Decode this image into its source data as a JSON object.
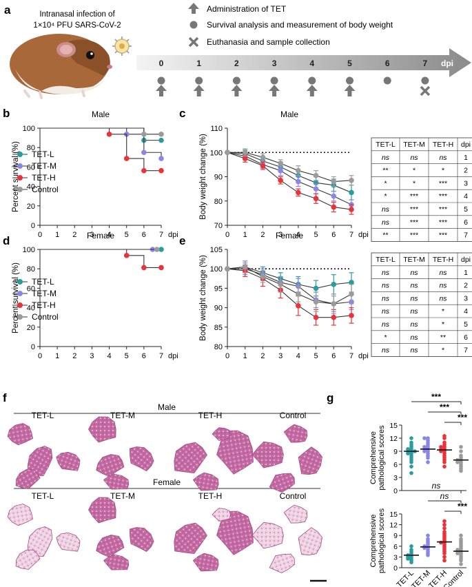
{
  "panel_labels": {
    "a": "a",
    "b": "b",
    "c": "c",
    "d": "d",
    "e": "e",
    "f": "f",
    "g": "g"
  },
  "colors": {
    "tet_l": "#2a9ca0",
    "tet_m": "#8a86e6",
    "tet_h": "#e8333b",
    "control": "#9b9b9b",
    "tissue": "#c76aa6",
    "arrow": "#777777"
  },
  "panel_a": {
    "infection_line1": "Intranasal infection of",
    "infection_line2": "1×10⁴ PFU SARS-CoV-2",
    "legend": [
      {
        "icon": "up-arrow-icon",
        "text": "Administration of TET"
      },
      {
        "icon": "circle-icon",
        "text": "Survival analysis and measurement of body weight"
      },
      {
        "icon": "cross-icon",
        "text": "Euthanasia and sample collection"
      }
    ],
    "days": [
      "0",
      "1",
      "2",
      "3",
      "4",
      "5",
      "6",
      "7"
    ],
    "dpi": "dpi",
    "administration_days": [
      0,
      1,
      2,
      3,
      4,
      5
    ],
    "circle_days": [
      0,
      1,
      2,
      3,
      4,
      5,
      6,
      7
    ],
    "cross_days": [
      7
    ]
  },
  "legend_groups": [
    "TET-L",
    "TET-M",
    "TET-H",
    "Control"
  ],
  "tables": {
    "male": {
      "headers": [
        "TET-L",
        "TET-M",
        "TET-H",
        "dpi"
      ],
      "rows": [
        [
          "ns",
          "ns",
          "ns",
          "1"
        ],
        [
          "**",
          "*",
          "*",
          "2"
        ],
        [
          "*",
          "*",
          "***",
          "3"
        ],
        [
          "*",
          "***",
          "***",
          "4"
        ],
        [
          "ns",
          "***",
          "***",
          "5"
        ],
        [
          "ns",
          "***",
          "***",
          "6"
        ],
        [
          "**",
          "***",
          "***",
          "7"
        ]
      ]
    },
    "female": {
      "headers": [
        "TET-L",
        "TET-M",
        "TET-H",
        "dpi"
      ],
      "rows": [
        [
          "ns",
          "ns",
          "ns",
          "1"
        ],
        [
          "ns",
          "ns",
          "ns",
          "2"
        ],
        [
          "ns",
          "ns",
          "ns",
          "3"
        ],
        [
          "ns",
          "ns",
          "*",
          "4"
        ],
        [
          "ns",
          "ns",
          "*",
          "5"
        ],
        [
          "*",
          "ns",
          "**",
          "6"
        ],
        [
          "ns",
          "ns",
          "*",
          "7"
        ]
      ]
    }
  },
  "panel_f": {
    "male_title": "Male",
    "female_title": "Female",
    "groups": [
      "TET-L",
      "TET-M",
      "TET-H",
      "Control"
    ]
  },
  "chart_data": [
    {
      "id": "b",
      "type": "line",
      "title": "Male",
      "xlabel": "dpi",
      "ylabel": "Percent survival (%)",
      "xlim": [
        0,
        7
      ],
      "ylim": [
        0,
        100
      ],
      "xticks": [
        "0",
        "1",
        "2",
        "3",
        "4",
        "5",
        "6",
        "7"
      ],
      "yticks": [
        "0",
        "20",
        "40",
        "60",
        "80",
        "100"
      ],
      "series": [
        {
          "name": "TET-L",
          "x": [
            0,
            6,
            7
          ],
          "y": [
            100,
            87.5,
            87.5
          ]
        },
        {
          "name": "TET-M",
          "x": [
            0,
            5,
            6,
            7
          ],
          "y": [
            100,
            93.75,
            75,
            68.75
          ]
        },
        {
          "name": "TET-H",
          "x": [
            0,
            4,
            5,
            6,
            7
          ],
          "y": [
            100,
            93.75,
            68.75,
            56.25,
            56.25
          ]
        },
        {
          "name": "Control",
          "x": [
            0,
            6,
            7
          ],
          "y": [
            100,
            93.75,
            93.75
          ]
        }
      ]
    },
    {
      "id": "c",
      "type": "line",
      "title": "Male",
      "xlabel": "dpi",
      "ylabel": "Body weight change (%)",
      "xlim": [
        0,
        7
      ],
      "ylim": [
        70,
        110
      ],
      "xticks": [
        "0",
        "1",
        "2",
        "3",
        "4",
        "5",
        "6",
        "7"
      ],
      "yticks": [
        "70",
        "80",
        "90",
        "100",
        "110"
      ],
      "reference_line": 100,
      "x": [
        0,
        1,
        2,
        3,
        4,
        5,
        6,
        7
      ],
      "series": [
        {
          "name": "TET-L",
          "values": [
            100,
            99.5,
            96.5,
            94,
            90.5,
            87.5,
            86.5,
            83.5
          ],
          "errors": [
            0,
            1.5,
            1.5,
            2,
            2,
            2.5,
            2.5,
            3
          ]
        },
        {
          "name": "TET-M",
          "values": [
            100,
            98.5,
            95,
            92.5,
            88,
            85,
            82,
            78.5
          ],
          "errors": [
            0,
            1.5,
            1.5,
            2,
            2,
            2,
            2,
            2
          ]
        },
        {
          "name": "TET-H",
          "values": [
            100,
            97.5,
            94.5,
            88.5,
            83.5,
            81,
            77.5,
            76.5
          ],
          "errors": [
            0,
            1.5,
            1.5,
            1.5,
            1.5,
            2,
            2,
            2
          ]
        },
        {
          "name": "Control",
          "values": [
            100,
            100,
            98,
            95.5,
            92.5,
            90.5,
            88,
            88.5
          ],
          "errors": [
            0,
            1.5,
            1.5,
            1.5,
            2,
            2,
            2,
            2
          ]
        }
      ]
    },
    {
      "id": "d",
      "type": "line",
      "title": "Female",
      "xlabel": "dpi",
      "ylabel": "Percent survival (%)",
      "xlim": [
        0,
        7
      ],
      "ylim": [
        0,
        100
      ],
      "xticks": [
        "0",
        "1",
        "2",
        "3",
        "4",
        "5",
        "6",
        "7"
      ],
      "yticks": [
        "0",
        "20",
        "40",
        "60",
        "80",
        "100"
      ],
      "series": [
        {
          "name": "TET-L",
          "x": [
            0,
            7
          ],
          "y": [
            100,
            100
          ]
        },
        {
          "name": "TET-M",
          "x": [
            0,
            6.5
          ],
          "y": [
            100,
            100
          ]
        },
        {
          "name": "TET-H",
          "x": [
            0,
            5,
            6,
            7
          ],
          "y": [
            100,
            93.75,
            81.25,
            81.25
          ]
        },
        {
          "name": "Control",
          "x": [
            0,
            6.75
          ],
          "y": [
            100,
            100
          ]
        }
      ]
    },
    {
      "id": "e",
      "type": "line",
      "title": "Female",
      "xlabel": "dpi",
      "ylabel": "Body weight change (%)",
      "xlim": [
        0,
        7
      ],
      "ylim": [
        80,
        105
      ],
      "xticks": [
        "0",
        "1",
        "2",
        "3",
        "4",
        "5",
        "6",
        "7"
      ],
      "yticks": [
        "80",
        "85",
        "90",
        "95",
        "100",
        "105"
      ],
      "reference_line": 100,
      "x": [
        0,
        1,
        2,
        3,
        4,
        5,
        6,
        7
      ],
      "series": [
        {
          "name": "TET-L",
          "values": [
            100,
            100.5,
            99,
            97.5,
            96,
            95,
            96,
            96.5
          ],
          "errors": [
            0,
            1.5,
            1.5,
            1.5,
            2,
            2,
            2.5,
            2.5
          ]
        },
        {
          "name": "TET-M",
          "values": [
            100,
            100,
            98.5,
            96.5,
            95.5,
            92,
            91,
            91.5
          ],
          "errors": [
            0,
            1.5,
            1.5,
            1.5,
            2,
            2,
            2,
            2
          ]
        },
        {
          "name": "TET-H",
          "values": [
            100,
            99.5,
            97.5,
            94.5,
            90.5,
            87.5,
            87.5,
            88
          ],
          "errors": [
            0,
            1.5,
            2,
            2,
            2.5,
            2,
            2,
            2
          ]
        },
        {
          "name": "Control",
          "values": [
            100,
            100.5,
            98,
            96,
            93.5,
            91.5,
            91,
            93.5
          ],
          "errors": [
            0,
            1.5,
            1.5,
            2,
            2,
            2.5,
            2.5,
            2.5
          ]
        }
      ]
    },
    {
      "id": "g_male",
      "type": "scatter",
      "ylabel": "Comprehensive pathological scores",
      "ylim": [
        0,
        15
      ],
      "yticks": [
        "0",
        "3",
        "6",
        "9",
        "12",
        "15"
      ],
      "categories": [
        "TET-L",
        "TET-M",
        "TET-H",
        "Control"
      ],
      "means": [
        9,
        9.5,
        9.3,
        7
      ],
      "points": [
        [
          4,
          5.5,
          6.5,
          7,
          7.5,
          8,
          8.5,
          8.5,
          9,
          9,
          9,
          9.5,
          9.5,
          10,
          10.5,
          11,
          12
        ],
        [
          6.5,
          7.5,
          8,
          8.5,
          9,
          9,
          9.5,
          9.5,
          10,
          10,
          10.5,
          11,
          11.5,
          12,
          12
        ],
        [
          5.5,
          6.5,
          7,
          7.5,
          8,
          8.5,
          9,
          9,
          9.5,
          9.5,
          10,
          10,
          10.5,
          11,
          12,
          12.5
        ],
        [
          4.5,
          5,
          5.5,
          6,
          6.5,
          6.5,
          7,
          7,
          7.5,
          8,
          9,
          10
        ]
      ],
      "significance": [
        {
          "from": "TET-L",
          "to": "Control",
          "label": "***"
        },
        {
          "from": "TET-M",
          "to": "Control",
          "label": "***"
        },
        {
          "from": "TET-H",
          "to": "Control",
          "label": "***"
        }
      ]
    },
    {
      "id": "g_female",
      "type": "scatter",
      "ylabel": "Comprehensive pathological scores",
      "ylim": [
        0,
        15
      ],
      "yticks": [
        "0",
        "3",
        "6",
        "9",
        "12",
        "15"
      ],
      "categories": [
        "TET-L",
        "TET-M",
        "TET-H",
        "Control"
      ],
      "means": [
        3.5,
        5.8,
        7.2,
        4.6
      ],
      "points": [
        [
          1.5,
          2,
          2.5,
          2.5,
          3,
          3,
          3.5,
          3.5,
          4,
          4.5,
          5,
          6
        ],
        [
          3.5,
          4,
          4.5,
          5,
          5.5,
          5.5,
          6,
          6,
          6.5,
          7,
          7.5,
          8,
          9
        ],
        [
          2,
          3,
          4,
          4.5,
          5,
          5.5,
          6,
          6.5,
          7,
          7,
          7.5,
          8,
          8.5,
          9,
          9.5,
          10,
          11,
          12,
          13
        ],
        [
          1,
          2,
          2.5,
          3,
          3.5,
          4,
          4,
          4.5,
          4.5,
          5,
          5,
          5.5,
          6,
          6.5,
          7,
          7.5,
          8,
          9
        ]
      ],
      "significance": [
        {
          "from": "TET-L",
          "to": "Control",
          "label": "ns"
        },
        {
          "from": "TET-M",
          "to": "Control",
          "label": "ns"
        },
        {
          "from": "TET-H",
          "to": "Control",
          "label": "***"
        }
      ]
    }
  ]
}
